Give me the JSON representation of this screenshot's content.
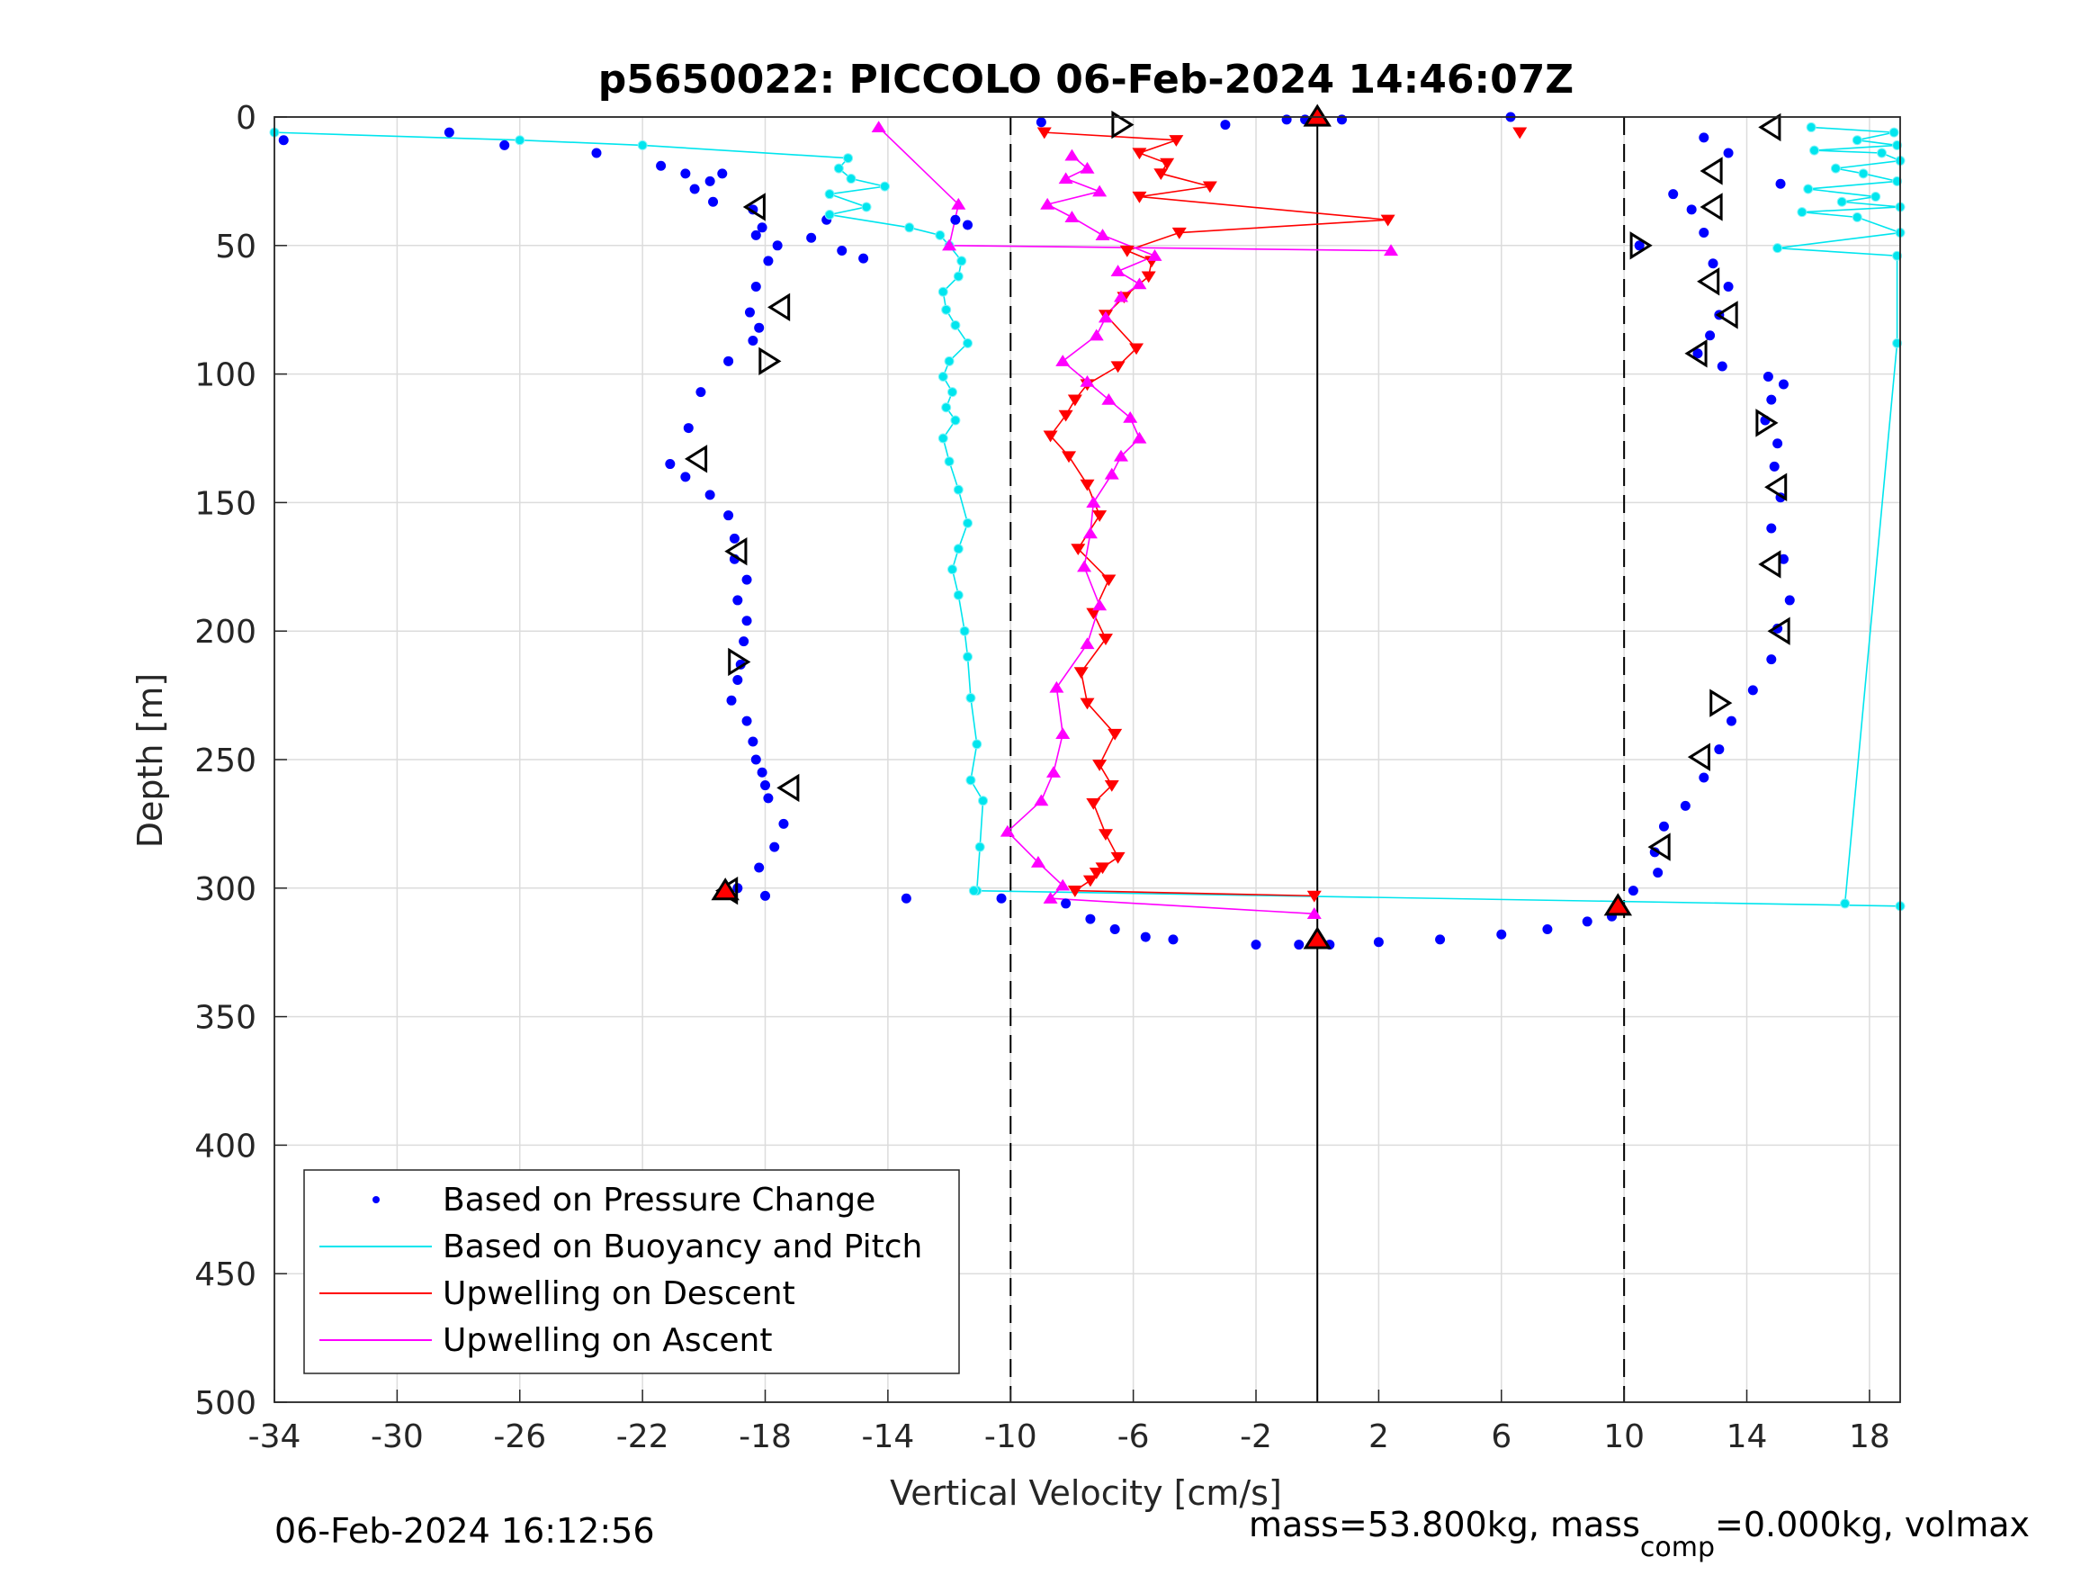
{
  "chart_data": {
    "type": "scatter",
    "title": "p5650022: PICCOLO 06-Feb-2024 14:46:07Z",
    "xlabel": "Vertical Velocity [cm/s]",
    "ylabel": "Depth [m]",
    "xlim": [
      -34,
      19
    ],
    "ylim": [
      0,
      500
    ],
    "y_reversed": true,
    "grid": true,
    "x_ticks": [
      "-34",
      "-30",
      "-26",
      "-22",
      "-18",
      "-14",
      "-10",
      "-6",
      "-2",
      "2",
      "6",
      "10",
      "14",
      "18"
    ],
    "y_ticks": [
      "0",
      "50",
      "100",
      "150",
      "200",
      "250",
      "300",
      "350",
      "400",
      "450",
      "500"
    ],
    "reference_lines": [
      {
        "x": -10,
        "style": "dashed"
      },
      {
        "x": 0,
        "style": "solid"
      },
      {
        "x": 10,
        "style": "dashed"
      }
    ],
    "legend_placement": "bottom-left",
    "series": [
      {
        "name": "Based on Pressure Change",
        "marker": "dot",
        "color": "#0000ff",
        "profiles": [
          {
            "x": [
              -19.4,
              -19.8,
              -20.3,
              -19.7,
              -18.4,
              -18.1,
              -18.3,
              -17.6,
              -17.9,
              -18.3,
              -18.5,
              -18.2,
              -18.4,
              -19.2,
              -20.1,
              -20.5,
              -21.1,
              -20.6,
              -19.8,
              -19.2,
              -19.0,
              -19.0,
              -18.6,
              -18.9,
              -18.6,
              -18.7,
              -18.8,
              -18.9,
              -19.1,
              -18.6,
              -18.4,
              -18.3,
              -18.1,
              -18.0,
              -17.9,
              -17.4,
              -17.7,
              -18.2,
              -18.9
            ],
            "y": [
              22,
              25,
              28,
              33,
              36,
              43,
              46,
              50,
              56,
              66,
              76,
              82,
              87,
              95,
              107,
              121,
              135,
              140,
              147,
              155,
              164,
              172,
              180,
              188,
              196,
              204,
              213,
              219,
              227,
              235,
              243,
              250,
              255,
              260,
              265,
              275,
              284,
              292,
              300
            ]
          },
          {
            "x": [
              -8.2,
              -7.4,
              -6.6,
              -5.6,
              -4.7,
              -2.0,
              -0.6,
              0.4,
              2.0,
              4.0,
              6.0,
              7.5,
              8.8,
              9.6,
              10.3,
              11.1,
              11.0,
              11.3,
              12.0,
              12.6,
              13.1,
              13.5,
              14.2,
              14.8,
              15.0,
              15.4,
              15.2,
              14.8,
              15.1,
              14.9,
              15.0,
              14.6,
              14.8,
              15.2,
              14.7,
              13.2,
              12.4,
              12.8,
              13.1,
              13.4,
              12.9,
              12.6,
              12.2,
              11.6
            ],
            "y": [
              306,
              312,
              316,
              319,
              320,
              322,
              322,
              322,
              321,
              320,
              318,
              316,
              313,
              311,
              301,
              294,
              286,
              276,
              268,
              257,
              246,
              235,
              223,
              211,
              199,
              188,
              172,
              160,
              148,
              136,
              127,
              118,
              110,
              104,
              101,
              97,
              92,
              85,
              77,
              66,
              57,
              45,
              36,
              30
            ]
          },
          {
            "x": [
              -33.7,
              -28.3,
              -26.5,
              -23.5,
              -21.4,
              -20.6,
              -16.0,
              -16.5,
              -15.5,
              -14.8,
              -11.8,
              -11.4,
              -18.0,
              -13.4,
              -10.3,
              -9.0,
              -3.0,
              -1.0,
              -0.4,
              0.8,
              6.3,
              12.6,
              13.4,
              15.1,
              10.5
            ],
            "y": [
              9,
              6,
              11,
              14,
              19,
              22,
              40,
              47,
              52,
              55,
              40,
              42,
              303,
              304,
              304,
              2,
              3,
              1,
              1,
              1,
              0,
              8,
              14,
              26,
              50
            ]
          }
        ]
      },
      {
        "name": "Based on Buoyancy and Pitch",
        "marker": "circle",
        "color": "#00e5ee",
        "profiles": [
          {
            "x": [
              -34.0,
              -26.0,
              -22.0,
              -15.3,
              -15.6,
              -15.2,
              -14.1,
              -15.9,
              -14.7,
              -15.9,
              -13.3,
              -12.3,
              -12.0,
              -11.6,
              -11.7,
              -12.2,
              -12.1,
              -11.8,
              -11.4,
              -12.0,
              -12.2,
              -11.9,
              -12.1,
              -11.8,
              -12.2,
              -12.0,
              -11.7,
              -11.4,
              -11.7,
              -11.9,
              -11.7,
              -11.5,
              -11.4,
              -11.3,
              -11.1,
              -11.3,
              -10.9,
              -11.0,
              -11.1
            ],
            "y": [
              6,
              9,
              11,
              16,
              20,
              24,
              27,
              30,
              35,
              38,
              43,
              46,
              50,
              56,
              62,
              68,
              75,
              81,
              88,
              95,
              101,
              107,
              113,
              118,
              125,
              134,
              145,
              158,
              168,
              176,
              186,
              200,
              210,
              226,
              244,
              258,
              266,
              284,
              301
            ]
          },
          {
            "x": [
              -11.2,
              19.0
            ],
            "y": [
              301,
              307
            ]
          },
          {
            "x": [
              16.1,
              18.8,
              17.6,
              18.9,
              16.2,
              18.4,
              19.0,
              16.9,
              17.8,
              18.9,
              16.0,
              18.2,
              17.1,
              19.0,
              15.8,
              17.6,
              19.0,
              15.0,
              18.9,
              18.9,
              17.2
            ],
            "y": [
              4,
              6,
              9,
              11,
              13,
              14,
              17,
              20,
              22,
              25,
              28,
              31,
              33,
              35,
              37,
              39,
              45,
              51,
              54,
              88,
              306
            ]
          }
        ]
      },
      {
        "name": "Upwelling on Descent",
        "marker": "triangle-down",
        "color": "#ff0000",
        "profiles": [
          {
            "x": [
              -8.9,
              -4.6,
              -5.8,
              -4.9,
              -5.1,
              -3.5,
              -5.8,
              2.3,
              -4.5,
              -6.2,
              -5.4,
              -5.5,
              -6.3,
              -6.9,
              -5.9,
              -6.5,
              -7.5,
              -7.9,
              -8.2,
              -8.7,
              -8.1,
              -7.5,
              -7.1,
              -7.8,
              -6.8,
              -7.3,
              -6.9,
              -7.7,
              -7.5,
              -6.6,
              -7.1,
              -6.7,
              -7.3,
              -6.9,
              -6.5,
              -7.0,
              -7.2,
              -7.4,
              -7.9,
              -0.1
            ],
            "y": [
              6,
              9,
              14,
              18,
              22,
              27,
              31,
              40,
              45,
              52,
              56,
              62,
              70,
              77,
              90,
              97,
              104,
              110,
              116,
              124,
              132,
              143,
              155,
              168,
              180,
              193,
              203,
              216,
              228,
              240,
              252,
              260,
              267,
              279,
              288,
              292,
              294,
              297,
              301,
              303
            ]
          },
          {
            "x": [
              6.6
            ],
            "y": [
              6
            ]
          }
        ]
      },
      {
        "name": "Upwelling on Ascent",
        "marker": "triangle-up",
        "color": "#ff00ff",
        "profiles": [
          {
            "x": [
              -8.0,
              -7.5,
              -8.2,
              -7.1,
              -8.8,
              -8.0,
              -7.0,
              -5.3,
              -6.5,
              -5.8,
              -6.4,
              -6.9,
              -7.2,
              -8.3,
              -7.5,
              -6.8,
              -6.1,
              -5.8,
              -6.4,
              -6.7,
              -7.3,
              -7.4,
              -7.6,
              -7.1,
              -7.5,
              -8.5,
              -8.3,
              -8.6,
              -9.0,
              -10.1,
              -9.1,
              -8.3,
              -8.7,
              -0.1
            ],
            "y": [
              15,
              20,
              24,
              29,
              34,
              39,
              46,
              54,
              60,
              65,
              70,
              78,
              85,
              95,
              103,
              110,
              117,
              125,
              132,
              139,
              150,
              162,
              175,
              190,
              205,
              222,
              240,
              255,
              266,
              278,
              290,
              299,
              304,
              310
            ]
          },
          {
            "x": [
              -14.3,
              -11.7,
              -12.0,
              2.4
            ],
            "y": [
              4,
              34,
              50,
              52
            ]
          }
        ]
      }
    ],
    "markers": {
      "open_triangles_left_profile": [
        {
          "x": -18.3,
          "y": 35
        },
        {
          "x": -17.5,
          "y": 74
        },
        {
          "x": -17.9,
          "y": 95
        },
        {
          "x": -20.2,
          "y": 133
        },
        {
          "x": -18.9,
          "y": 169
        },
        {
          "x": -18.9,
          "y": 212
        },
        {
          "x": -17.2,
          "y": 261
        },
        {
          "x": -19.2,
          "y": 301
        },
        {
          "x": -6.4,
          "y": 3
        }
      ],
      "open_triangles_right_profile": [
        {
          "x": 14.8,
          "y": 4
        },
        {
          "x": 12.9,
          "y": 21
        },
        {
          "x": 12.9,
          "y": 35
        },
        {
          "x": 10.5,
          "y": 50
        },
        {
          "x": 12.8,
          "y": 64
        },
        {
          "x": 13.4,
          "y": 77
        },
        {
          "x": 12.4,
          "y": 92
        },
        {
          "x": 14.6,
          "y": 119
        },
        {
          "x": 15.0,
          "y": 144
        },
        {
          "x": 14.8,
          "y": 174
        },
        {
          "x": 15.1,
          "y": 200
        },
        {
          "x": 13.1,
          "y": 228
        },
        {
          "x": 12.5,
          "y": 249
        },
        {
          "x": 11.2,
          "y": 284
        }
      ],
      "red_filled_triangles": [
        {
          "x": -19.3,
          "y": 301
        },
        {
          "x": 9.8,
          "y": 307
        },
        {
          "x": 0.0,
          "y": 320
        },
        {
          "x": 0.0,
          "y": 0
        }
      ]
    }
  },
  "footer": {
    "timestamp": "06-Feb-2024 16:12:56",
    "mass_prefix": "mass=53.800kg, mass",
    "mass_sub": "comp",
    "mass_suffix": "=0.000kg, volmax"
  }
}
